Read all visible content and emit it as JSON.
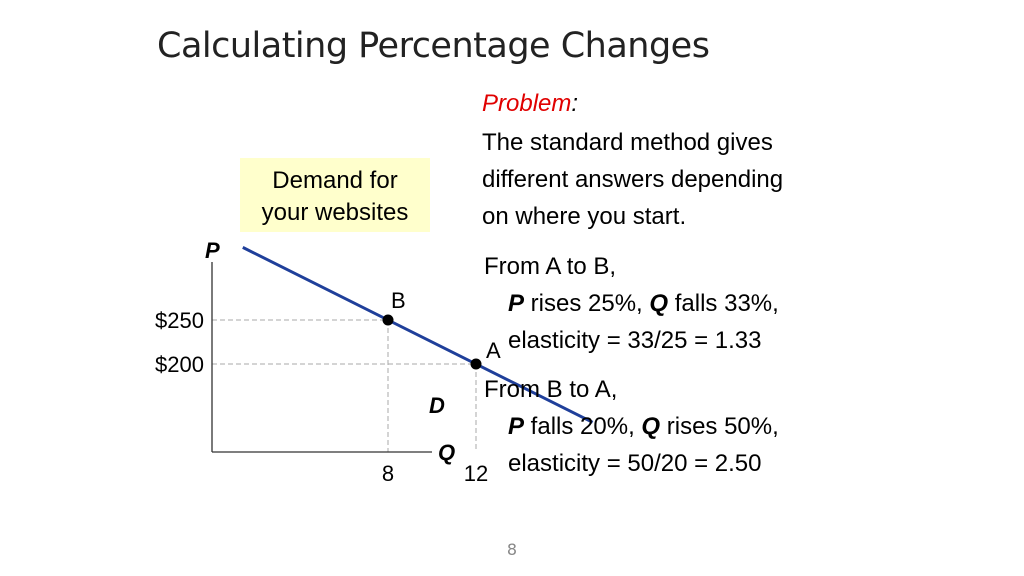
{
  "title": "Calculating Percentage Changes",
  "legend_label_lines": [
    "Demand for",
    "your websites"
  ],
  "problem": {
    "label": "Problem",
    "colon": ":",
    "lines": [
      "The standard method gives",
      "different answers depending",
      "on where you start."
    ]
  },
  "cases": [
    {
      "heading": "From A to B,",
      "p_symbol": "P",
      "p_text": " rises 25%, ",
      "q_symbol": "Q",
      "q_text": " falls 33%,",
      "elasticity": "elasticity = 33/25 = 1.33"
    },
    {
      "heading": "From B to A,",
      "p_symbol": "P",
      "p_text": " falls 20%, ",
      "q_symbol": "Q",
      "q_text": " rises 50%,",
      "elasticity": "elasticity = 50/20 = 2.50"
    }
  ],
  "page_number": "8",
  "chart_data": {
    "type": "line",
    "xlabel": "Q",
    "ylabel": "P",
    "curve_label": "D",
    "x_ticks": [
      {
        "value": 8,
        "label": "8"
      },
      {
        "value": 12,
        "label": "12"
      }
    ],
    "y_ticks": [
      {
        "value": 250,
        "label": "$250"
      },
      {
        "value": 200,
        "label": "$200"
      }
    ],
    "points": [
      {
        "name": "B",
        "x": 8,
        "y": 250
      },
      {
        "name": "A",
        "x": 12,
        "y": 200
      }
    ],
    "xlim": [
      0,
      22
    ],
    "ylim": [
      100,
      400
    ],
    "grid": false,
    "guide_lines": true,
    "colors": {
      "curve": "#1f3f9a",
      "guide": "#aaaaaa",
      "axis": "#333333",
      "legend_bg": "#ffffcc",
      "problem": "#e00000"
    }
  }
}
